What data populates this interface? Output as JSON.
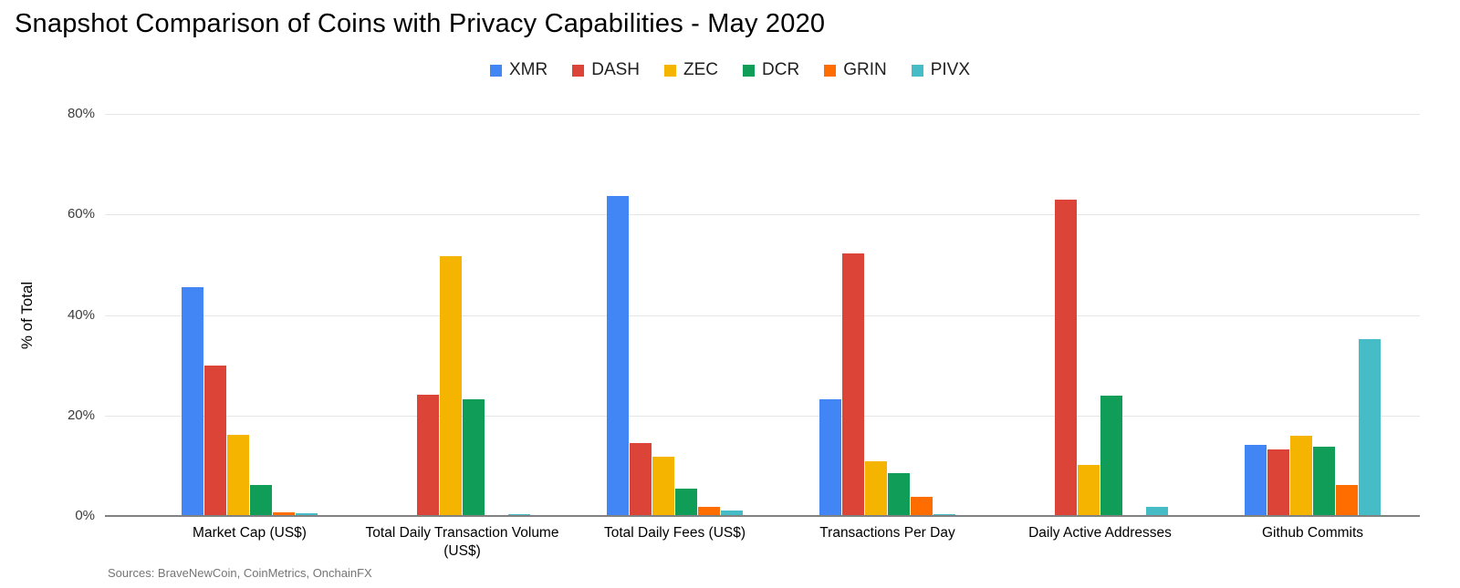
{
  "title": "Snapshot Comparison of Coins with Privacy Capabilities - May 2020",
  "sources_note": "Sources: BraveNewCoin, CoinMetrics, OnchainFX",
  "chart_data": {
    "type": "bar",
    "title": "Snapshot Comparison of Coins with Privacy Capabilities - May 2020",
    "xlabel": "",
    "ylabel": "% of Total",
    "ylim": [
      0,
      80
    ],
    "yticks": [
      0,
      20,
      40,
      60,
      80
    ],
    "ytick_suffix": "%",
    "grid": true,
    "legend_position": "top",
    "categories": [
      "Market Cap (US$)",
      "Total Daily Transaction Volume (US$)",
      "Total Daily Fees (US$)",
      "Transactions Per Day",
      "Daily Active Addresses",
      "Github Commits"
    ],
    "series": [
      {
        "name": "XMR",
        "color": "#4285F4",
        "values": [
          45.5,
          0,
          63.7,
          23.3,
          0,
          14.1
        ]
      },
      {
        "name": "DASH",
        "color": "#DB4437",
        "values": [
          29.9,
          24.1,
          14.5,
          52.2,
          62.9,
          13.3
        ]
      },
      {
        "name": "ZEC",
        "color": "#F4B400",
        "values": [
          16.2,
          51.7,
          11.8,
          10.9,
          10.2,
          15.9
        ]
      },
      {
        "name": "DCR",
        "color": "#0F9D58",
        "values": [
          6.1,
          23.3,
          5.4,
          8.5,
          23.9,
          13.8
        ]
      },
      {
        "name": "GRIN",
        "color": "#FF6D01",
        "values": [
          0.8,
          0,
          1.8,
          3.8,
          0,
          6.1
        ]
      },
      {
        "name": "PIVX",
        "color": "#46BDC6",
        "values": [
          0.6,
          0.3,
          1.1,
          0.4,
          1.8,
          35.2
        ]
      }
    ]
  }
}
